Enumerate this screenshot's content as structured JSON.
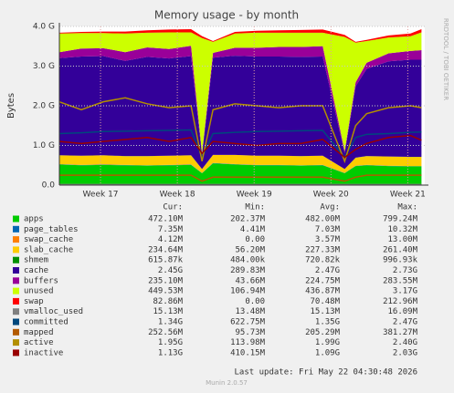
{
  "chart_data": {
    "type": "area",
    "title": "Memory usage - by month",
    "y_label": "Bytes",
    "side_note": "RRDTOOL / TOBI OETIKER",
    "footer": "Last update: Fri May 22 04:30:48 2026",
    "version": "Munin 2.0.57",
    "legend_columns": [
      "Cur:",
      "Min:",
      "Avg:",
      "Max:"
    ],
    "x": [
      0,
      2,
      4,
      6,
      8,
      10,
      12,
      13,
      14,
      16,
      18,
      20,
      22,
      24,
      26,
      27,
      28,
      30,
      32,
      33
    ],
    "xlim": [
      0,
      33.3
    ],
    "xticks": [
      {
        "value": 3.75,
        "label": "Week 17"
      },
      {
        "value": 10.75,
        "label": "Week 18"
      },
      {
        "value": 17.75,
        "label": "Week 19"
      },
      {
        "value": 24.75,
        "label": "Week 20"
      },
      {
        "value": 31.75,
        "label": "Week 21"
      }
    ],
    "ylim": [
      0,
      4
    ],
    "yticks": [
      {
        "value": 0,
        "label": "0.0"
      },
      {
        "value": 1,
        "label": "1.0 G"
      },
      {
        "value": 2,
        "label": "2.0 G"
      },
      {
        "value": 3,
        "label": "3.0 G"
      },
      {
        "value": 4,
        "label": "4.0 G"
      }
    ],
    "grid": true,
    "series": [
      {
        "name": "apps",
        "color": "#00cc00",
        "style": "area",
        "stats": [
          "472.10M",
          "202.37M",
          "482.00M",
          "799.24M"
        ],
        "values": [
          0.52,
          0.5,
          0.51,
          0.5,
          0.49,
          0.5,
          0.51,
          0.3,
          0.55,
          0.52,
          0.5,
          0.5,
          0.49,
          0.5,
          0.3,
          0.48,
          0.5,
          0.48,
          0.47,
          0.47
        ]
      },
      {
        "name": "page_tables",
        "color": "#0066b3",
        "style": "area",
        "stats": [
          "7.35M",
          "4.41M",
          "7.03M",
          "10.32M"
        ],
        "values": [
          0.007,
          0.007,
          0.007,
          0.007,
          0.007,
          0.007,
          0.007,
          0.005,
          0.007,
          0.007,
          0.007,
          0.007,
          0.007,
          0.007,
          0.005,
          0.007,
          0.007,
          0.007,
          0.007,
          0.007
        ]
      },
      {
        "name": "swap_cache",
        "color": "#ff8000",
        "style": "area",
        "stats": [
          "4.12M",
          "0.00",
          "3.57M",
          "13.00M"
        ],
        "values": [
          0.004,
          0.004,
          0.004,
          0.004,
          0.004,
          0.004,
          0.004,
          0,
          0.004,
          0.004,
          0.004,
          0.004,
          0.004,
          0.004,
          0,
          0.004,
          0.004,
          0.004,
          0.004,
          0.004
        ]
      },
      {
        "name": "slab_cache",
        "color": "#ffcc00",
        "style": "area",
        "stats": [
          "234.64M",
          "56.20M",
          "227.33M",
          "261.40M"
        ],
        "values": [
          0.22,
          0.23,
          0.23,
          0.22,
          0.23,
          0.23,
          0.23,
          0.1,
          0.2,
          0.23,
          0.23,
          0.23,
          0.23,
          0.23,
          0.1,
          0.2,
          0.22,
          0.23,
          0.23,
          0.23
        ]
      },
      {
        "name": "shmem",
        "color": "#008f00",
        "style": "area",
        "stats": [
          "615.87k",
          "484.00k",
          "720.82k",
          "996.93k"
        ],
        "values": [
          0.001,
          0.001,
          0.001,
          0.001,
          0.001,
          0.001,
          0.001,
          0.001,
          0.001,
          0.001,
          0.001,
          0.001,
          0.001,
          0.001,
          0.001,
          0.001,
          0.001,
          0.001,
          0.001,
          0.001
        ]
      },
      {
        "name": "cache",
        "color": "#330099",
        "style": "area",
        "stats": [
          "2.45G",
          "289.83M",
          "2.47G",
          "2.73G"
        ],
        "values": [
          2.45,
          2.5,
          2.5,
          2.4,
          2.5,
          2.45,
          2.5,
          0.35,
          2.45,
          2.5,
          2.5,
          2.5,
          2.5,
          2.5,
          0.4,
          1.8,
          2.2,
          2.4,
          2.45,
          2.45
        ]
      },
      {
        "name": "buffers",
        "color": "#990099",
        "style": "area",
        "stats": [
          "235.10M",
          "43.66M",
          "224.75M",
          "283.55M"
        ],
        "values": [
          0.15,
          0.2,
          0.2,
          0.22,
          0.24,
          0.24,
          0.26,
          0.05,
          0.12,
          0.2,
          0.22,
          0.24,
          0.25,
          0.26,
          0.05,
          0.1,
          0.15,
          0.2,
          0.22,
          0.24
        ]
      },
      {
        "name": "unused",
        "color": "#ccff00",
        "style": "area",
        "stats": [
          "449.53M",
          "106.94M",
          "436.87M",
          "3.17G"
        ],
        "values": [
          0.47,
          0.39,
          0.38,
          0.47,
          0.37,
          0.42,
          0.34,
          2.9,
          0.28,
          0.36,
          0.38,
          0.36,
          0.36,
          0.34,
          2.88,
          1.0,
          0.55,
          0.4,
          0.37,
          0.45
        ]
      },
      {
        "name": "swap",
        "color": "#ff0000",
        "style": "area",
        "stats": [
          "82.86M",
          "0.00",
          "70.48M",
          "212.96M"
        ],
        "values": [
          0.02,
          0.03,
          0.04,
          0.05,
          0.06,
          0.07,
          0.08,
          0.05,
          0.02,
          0.04,
          0.05,
          0.06,
          0.07,
          0.08,
          0.05,
          0.02,
          0.03,
          0.05,
          0.07,
          0.08
        ]
      },
      {
        "name": "vmalloc_used",
        "color": "#808080",
        "style": "line",
        "stats": [
          "15.13M",
          "13.48M",
          "15.13M",
          "16.09M"
        ],
        "values": [
          0.015,
          0.015,
          0.015,
          0.015,
          0.015,
          0.015,
          0.015,
          0.014,
          0.015,
          0.015,
          0.015,
          0.015,
          0.015,
          0.015,
          0.014,
          0.015,
          0.015,
          0.015,
          0.015,
          0.015
        ]
      },
      {
        "name": "committed",
        "color": "#00487d",
        "style": "line",
        "stats": [
          "1.34G",
          "622.75M",
          "1.35G",
          "2.47G"
        ],
        "values": [
          1.3,
          1.32,
          1.35,
          1.36,
          1.37,
          1.38,
          1.39,
          0.7,
          1.3,
          1.33,
          1.35,
          1.36,
          1.37,
          1.38,
          0.7,
          1.2,
          1.28,
          1.3,
          1.33,
          1.34
        ]
      },
      {
        "name": "mapped",
        "color": "#b35a00",
        "style": "line",
        "stats": [
          "252.56M",
          "95.73M",
          "205.29M",
          "381.27M"
        ],
        "values": [
          0.25,
          0.25,
          0.25,
          0.25,
          0.25,
          0.25,
          0.25,
          0.1,
          0.2,
          0.2,
          0.2,
          0.2,
          0.2,
          0.2,
          0.1,
          0.2,
          0.25,
          0.25,
          0.25,
          0.25
        ]
      },
      {
        "name": "active",
        "color": "#b38f00",
        "style": "line",
        "stats": [
          "1.95G",
          "113.98M",
          "1.99G",
          "2.40G"
        ],
        "values": [
          2.1,
          1.9,
          2.1,
          2.2,
          2.05,
          1.95,
          2.0,
          0.6,
          1.9,
          2.05,
          2.0,
          1.95,
          2.0,
          2.0,
          0.6,
          1.5,
          1.8,
          1.95,
          2.0,
          1.95
        ]
      },
      {
        "name": "inactive",
        "color": "#990000",
        "style": "line",
        "stats": [
          "1.13G",
          "410.15M",
          "1.09G",
          "2.03G"
        ],
        "values": [
          1.1,
          1.05,
          1.1,
          1.15,
          1.2,
          1.1,
          1.2,
          0.8,
          1.1,
          1.05,
          1.0,
          1.05,
          1.05,
          1.15,
          0.7,
          0.9,
          1.05,
          1.2,
          1.25,
          1.13
        ]
      }
    ]
  }
}
